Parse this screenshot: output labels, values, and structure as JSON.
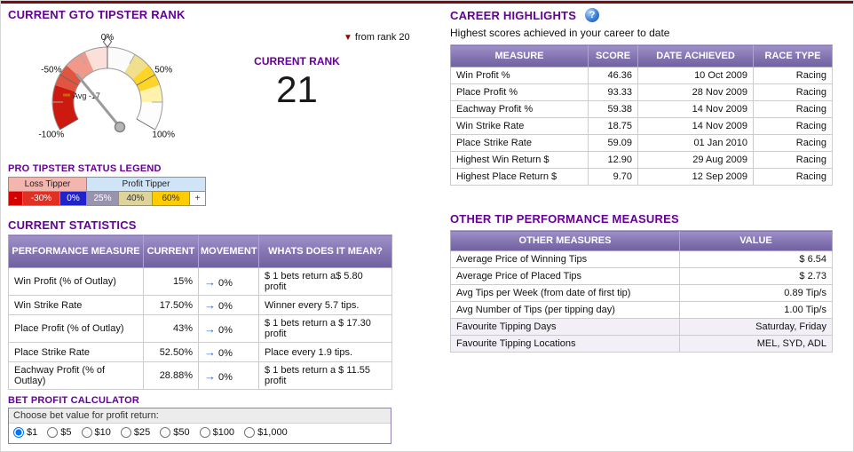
{
  "rank_section": {
    "title": "CURRENT GTO TIPSTER RANK",
    "current_rank_label": "CURRENT RANK",
    "current_rank_value": "21",
    "rank_change": {
      "text": "from rank 20",
      "direction": "down",
      "arrow_glyph": "▼",
      "arrow_color": "#990000"
    },
    "gauge": {
      "avg_label": "Avg -17",
      "avg_value": -17,
      "needle_value": -40,
      "labels": [
        {
          "v": -100,
          "text": "-100%"
        },
        {
          "v": -50,
          "text": "-50%"
        },
        {
          "v": 0,
          "text": "0%"
        },
        {
          "v": 50,
          "text": "50%"
        },
        {
          "v": 100,
          "text": "100%"
        }
      ],
      "segments": [
        {
          "from": -100,
          "to": -60,
          "color": "#cc1a10"
        },
        {
          "from": -60,
          "to": -40,
          "color": "#e05540"
        },
        {
          "from": -40,
          "to": -20,
          "color": "#f0988a"
        },
        {
          "from": -20,
          "to": 0,
          "color": "#fbe0da"
        },
        {
          "from": 0,
          "to": 25,
          "color": "#fbfbfb"
        },
        {
          "from": 25,
          "to": 40,
          "color": "#f0e08e"
        },
        {
          "from": 40,
          "to": 60,
          "color": "#ffd428"
        },
        {
          "from": 60,
          "to": 75,
          "color": "#fff2ac"
        },
        {
          "from": 75,
          "to": 100,
          "color": "#fdfdfd"
        }
      ]
    }
  },
  "legend": {
    "title": "PRO TIPSTER STATUS LEGEND",
    "loss_label": "Loss Tipper",
    "profit_label": "Profit Tipper",
    "cells": [
      {
        "label": "-",
        "bg": "#d40000",
        "fg": "#ffffff"
      },
      {
        "label": "-30%",
        "bg": "#e03024",
        "fg": "#ffffff"
      },
      {
        "label": "0%",
        "bg": "#2222cc",
        "fg": "#ffffff"
      },
      {
        "label": "25%",
        "bg": "#9a93ae",
        "fg": "#ffffff"
      },
      {
        "label": "40%",
        "bg": "#ddd39b",
        "fg": "#333333"
      },
      {
        "label": "60%",
        "bg": "#ffcc00",
        "fg": "#333333"
      },
      {
        "label": "+",
        "bg": "#ffffff",
        "fg": "#333333"
      }
    ]
  },
  "statistics": {
    "title": "CURRENT STATISTICS",
    "headers": [
      "PERFORMANCE MEASURE",
      "CURRENT",
      "MOVEMENT",
      "WHATS DOES IT MEAN?"
    ],
    "movement_arrow_glyph": "→",
    "movement_arrow_color": "#2e6fd0",
    "rows": [
      {
        "measure": "Win Profit (% of Outlay)",
        "current": "15%",
        "movement": "0%",
        "meaning": "$ 1 bets return a$ 5.80 profit"
      },
      {
        "measure": "Win Strike Rate",
        "current": "17.50%",
        "movement": "0%",
        "meaning": "Winner every 5.7 tips."
      },
      {
        "measure": "Place Profit (% of Outlay)",
        "current": "43%",
        "movement": "0%",
        "meaning": "$ 1 bets return a $ 17.30 profit"
      },
      {
        "measure": "Place Strike Rate",
        "current": "52.50%",
        "movement": "0%",
        "meaning": "Place every 1.9 tips."
      },
      {
        "measure": "Eachway Profit (% of Outlay)",
        "current": "28.88%",
        "movement": "0%",
        "meaning": "$ 1 bets return a $ 11.55 profit"
      }
    ]
  },
  "calculator": {
    "title": "BET PROFIT CALCULATOR",
    "prompt": "Choose bet value for profit return:",
    "options": [
      "$1",
      "$5",
      "$10",
      "$25",
      "$50",
      "$100",
      "$1,000"
    ],
    "selected": "$1"
  },
  "career": {
    "title": "CAREER HIGHLIGHTS",
    "help_icon_glyph": "?",
    "subtitle": "Highest scores achieved in your career to date",
    "headers": [
      "MEASURE",
      "SCORE",
      "DATE ACHIEVED",
      "RACE TYPE"
    ],
    "rows": [
      [
        "Win Profit %",
        "46.36",
        "10 Oct 2009",
        "Racing"
      ],
      [
        "Place Profit %",
        "93.33",
        "28 Nov 2009",
        "Racing"
      ],
      [
        "Eachway Profit %",
        "59.38",
        "14 Nov 2009",
        "Racing"
      ],
      [
        "Win Strike Rate",
        "18.75",
        "14 Nov 2009",
        "Racing"
      ],
      [
        "Place Strike Rate",
        "59.09",
        "01 Jan 2010",
        "Racing"
      ],
      [
        "Highest Win Return $",
        "12.90",
        "29 Aug 2009",
        "Racing"
      ],
      [
        "Highest Place Return $",
        "9.70",
        "12 Sep 2009",
        "Racing"
      ]
    ]
  },
  "other_measures": {
    "title": "OTHER TIP PERFORMANCE MEASURES",
    "headers": [
      "OTHER MEASURES",
      "VALUE"
    ],
    "rows": [
      [
        "Average Price of Winning Tips",
        "$ 6.54"
      ],
      [
        "Average Price of Placed Tips",
        "$ 2.73"
      ],
      [
        "Avg Tips per Week (from date of first tip)",
        "0.89 Tip/s"
      ],
      [
        "Avg Number of Tips (per tipping day)",
        "1.00 Tip/s"
      ],
      [
        "Favourite Tipping Days",
        "Saturday, Friday"
      ],
      [
        "Favourite Tipping Locations",
        "MEL, SYD, ADL"
      ]
    ]
  },
  "theme": {
    "title_color": "#660099",
    "header_gradient_top": "#9e90c8",
    "header_gradient_bottom": "#70609f",
    "top_bar_color": "#7a0c10"
  }
}
